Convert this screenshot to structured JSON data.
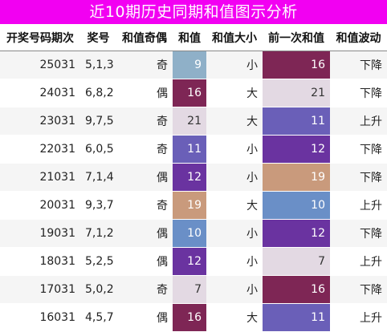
{
  "title": "近10期历史同期和值图示分析",
  "headers": [
    "开奖号码期次",
    "奖号",
    "和值奇偶",
    "和值",
    "和值大小",
    "前一次和值",
    "和值波动"
  ],
  "colors": {
    "title_bg": "#f200f2",
    "sum_7": "#e3d9e3",
    "sum_9": "#8fb0c8",
    "sum_10": "#6a8fc7",
    "sum_11": "#6a5fb8",
    "sum_12": "#6a33a0",
    "sum_16": "#7e2655",
    "sum_19": "#c99a7c",
    "sum_21": "#e3d9e3"
  },
  "rows": [
    {
      "issue": "25031",
      "numbers": "5,1,3",
      "parity": "奇",
      "sum": "9",
      "size": "小",
      "prev_sum": "16",
      "trend": "下降"
    },
    {
      "issue": "24031",
      "numbers": "6,8,2",
      "parity": "偶",
      "sum": "16",
      "size": "大",
      "prev_sum": "21",
      "trend": "下降"
    },
    {
      "issue": "23031",
      "numbers": "9,7,5",
      "parity": "奇",
      "sum": "21",
      "size": "大",
      "prev_sum": "11",
      "trend": "上升"
    },
    {
      "issue": "22031",
      "numbers": "6,0,5",
      "parity": "奇",
      "sum": "11",
      "size": "小",
      "prev_sum": "12",
      "trend": "下降"
    },
    {
      "issue": "21031",
      "numbers": "7,1,4",
      "parity": "偶",
      "sum": "12",
      "size": "小",
      "prev_sum": "19",
      "trend": "下降"
    },
    {
      "issue": "20031",
      "numbers": "9,3,7",
      "parity": "奇",
      "sum": "19",
      "size": "大",
      "prev_sum": "10",
      "trend": "上升"
    },
    {
      "issue": "19031",
      "numbers": "7,1,2",
      "parity": "偶",
      "sum": "10",
      "size": "小",
      "prev_sum": "12",
      "trend": "下降"
    },
    {
      "issue": "18031",
      "numbers": "5,2,5",
      "parity": "偶",
      "sum": "12",
      "size": "小",
      "prev_sum": "7",
      "trend": "上升"
    },
    {
      "issue": "17031",
      "numbers": "5,0,2",
      "parity": "奇",
      "sum": "7",
      "size": "小",
      "prev_sum": "16",
      "trend": "下降"
    },
    {
      "issue": "16031",
      "numbers": "4,5,7",
      "parity": "偶",
      "sum": "16",
      "size": "大",
      "prev_sum": "11",
      "trend": "上升"
    }
  ]
}
